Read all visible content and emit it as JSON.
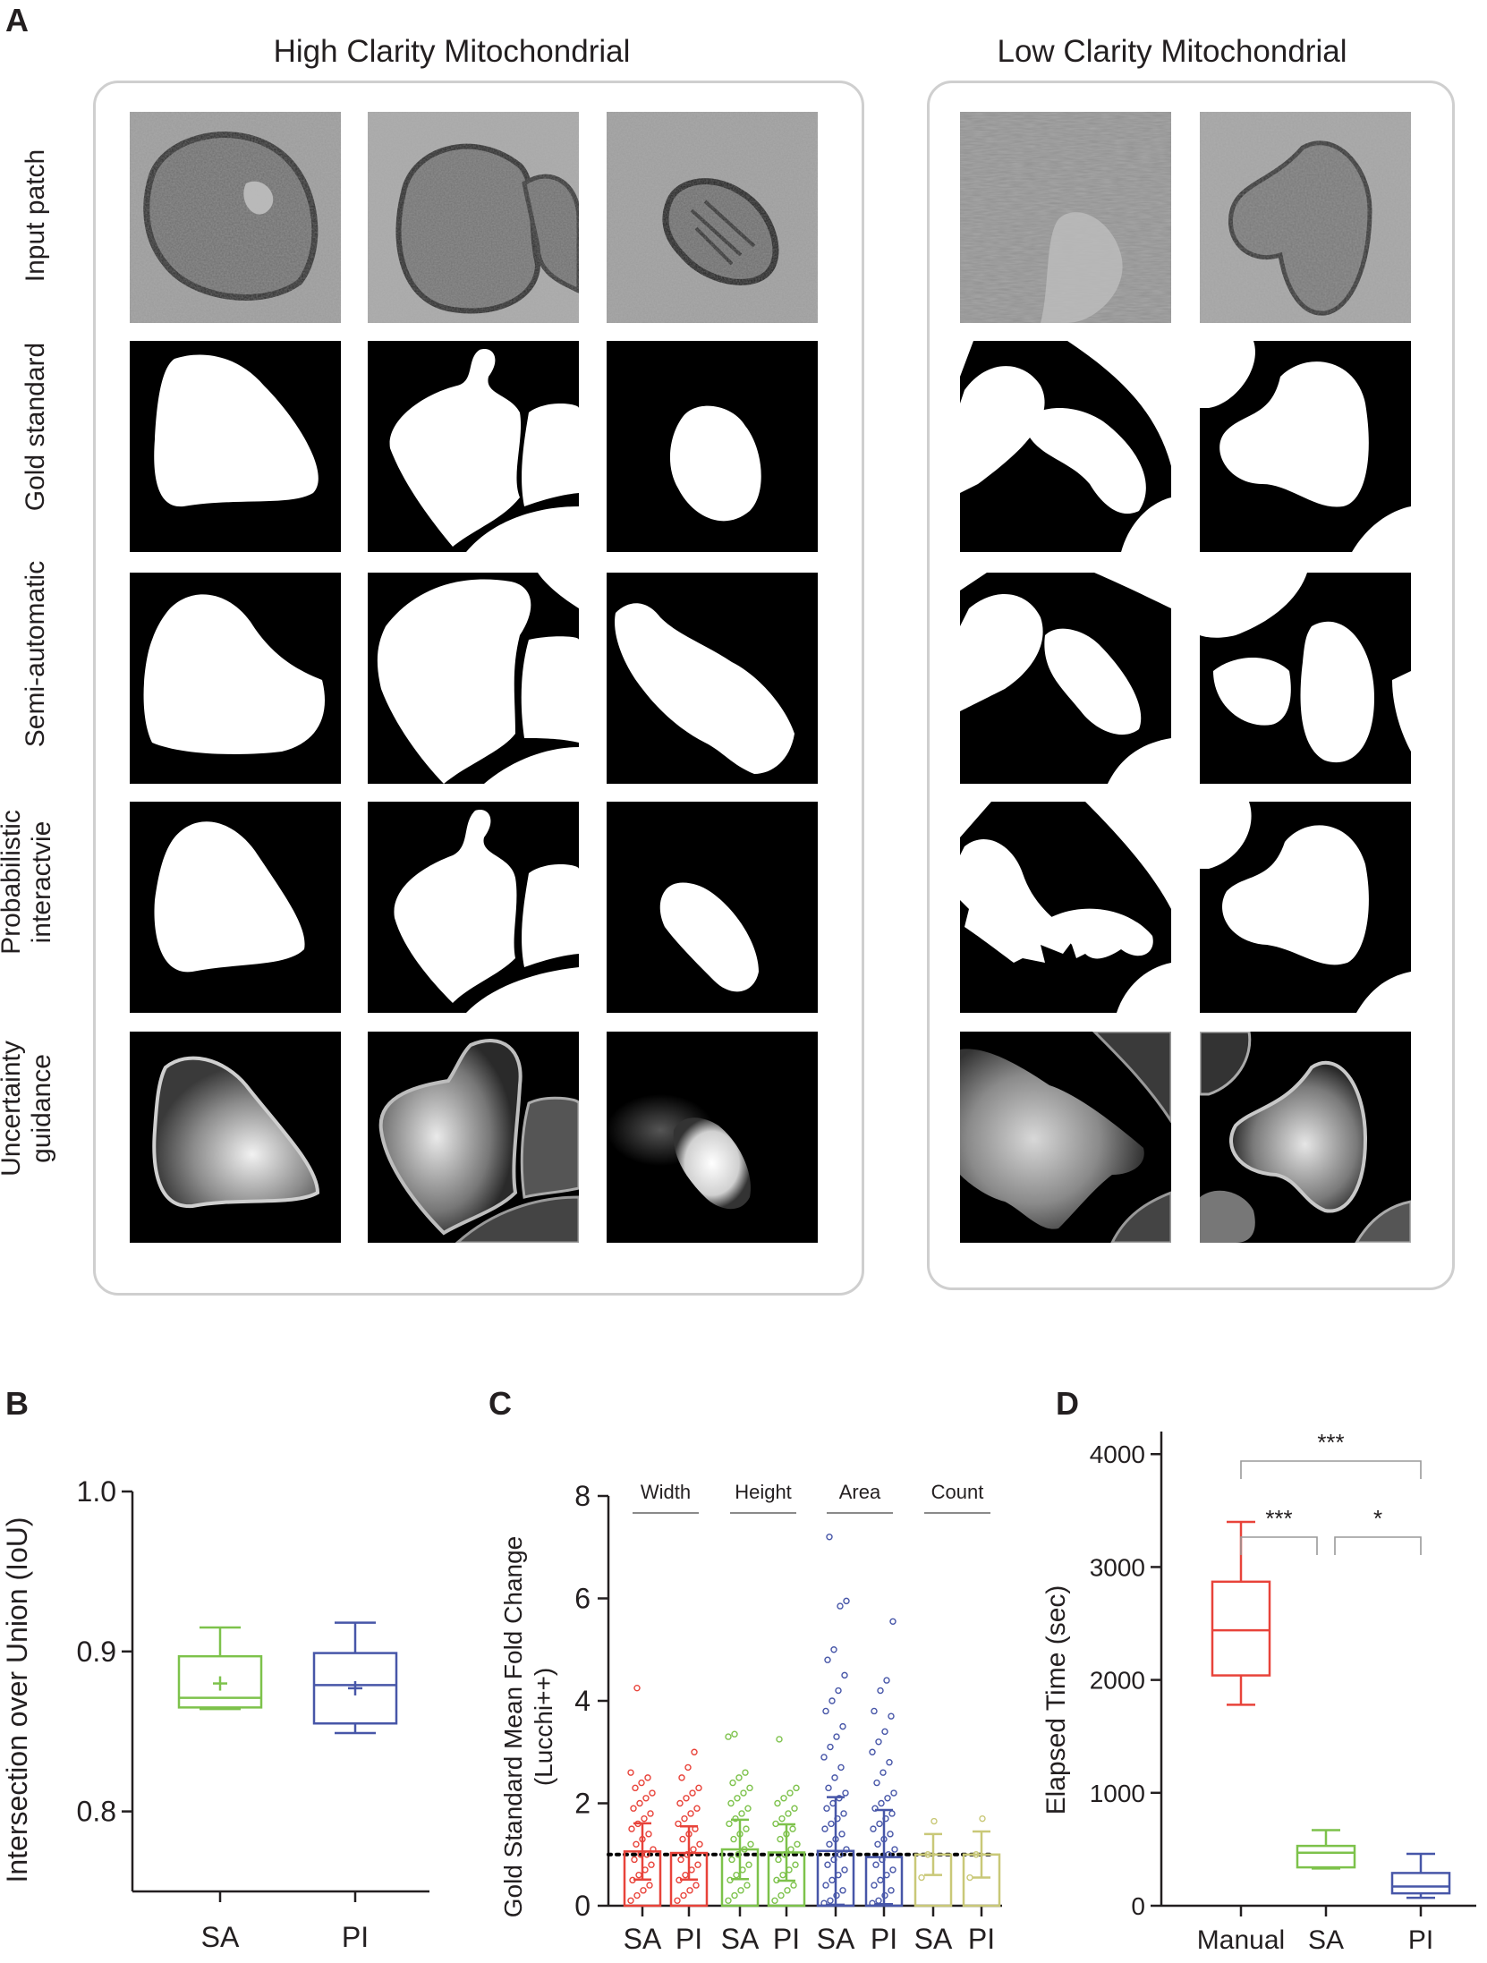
{
  "panel_a": {
    "letter": "A",
    "high_title": "High Clarity Mitochondrial",
    "low_title": "Low Clarity Mitochondrial",
    "rows": [
      {
        "label": "Input patch"
      },
      {
        "label": "Gold standard"
      },
      {
        "label": "Semi-automatic"
      },
      {
        "label": "Probabilistic\ninteractvie"
      },
      {
        "label": "Uncertainty\nguidance"
      }
    ]
  },
  "panel_b": {
    "letter": "B",
    "chart_data": {
      "type": "box",
      "ylabel": "Intersection over Union (IoU)",
      "ylim": [
        0.75,
        1.0
      ],
      "yticks": [
        "0.8",
        "0.9",
        "1.0"
      ],
      "categories": [
        "SA",
        "PI"
      ],
      "boxes": [
        {
          "name": "SA",
          "color": "#7dc24b",
          "min": 0.864,
          "q1": 0.865,
          "median": 0.871,
          "q3": 0.897,
          "max": 0.915,
          "mean": 0.88
        },
        {
          "name": "PI",
          "color": "#4756a8",
          "min": 0.849,
          "q1": 0.855,
          "median": 0.879,
          "q3": 0.899,
          "max": 0.918,
          "mean": 0.877
        }
      ]
    }
  },
  "panel_c": {
    "letter": "C",
    "chart_data": {
      "type": "bar",
      "ylabel_line1": "Gold Standard Mean Fold Change",
      "ylabel_line2": "(Lucchi++)",
      "ylim": [
        0,
        8
      ],
      "yticks": [
        "0",
        "2",
        "4",
        "6",
        "8"
      ],
      "reference_line": 1.0,
      "groups": [
        "Width",
        "Height",
        "Area",
        "Count"
      ],
      "categories": [
        "SA",
        "PI",
        "SA",
        "PI",
        "SA",
        "PI",
        "SA",
        "PI"
      ],
      "bars": [
        {
          "group": "Width",
          "method": "SA",
          "color": "#e8433a",
          "mean": 1.06,
          "sd": 0.55,
          "points": [
            0.1,
            0.2,
            0.3,
            0.4,
            0.5,
            0.6,
            0.7,
            0.8,
            0.9,
            1.0,
            1.0,
            1.1,
            1.2,
            1.3,
            1.4,
            1.5,
            1.6,
            1.7,
            1.8,
            1.9,
            2.0,
            2.1,
            2.2,
            2.3,
            2.4,
            2.5,
            2.6,
            4.25
          ]
        },
        {
          "group": "Width",
          "method": "PI",
          "color": "#e8433a",
          "mean": 1.03,
          "sd": 0.52,
          "points": [
            0.1,
            0.2,
            0.3,
            0.4,
            0.5,
            0.6,
            0.7,
            0.8,
            0.9,
            1.0,
            1.1,
            1.2,
            1.3,
            1.4,
            1.5,
            1.6,
            1.7,
            1.8,
            1.9,
            2.0,
            2.1,
            2.2,
            2.3,
            2.5,
            2.7,
            3.0
          ]
        },
        {
          "group": "Height",
          "method": "SA",
          "color": "#7dc24b",
          "mean": 1.1,
          "sd": 0.58,
          "points": [
            0.1,
            0.2,
            0.3,
            0.4,
            0.5,
            0.6,
            0.7,
            0.8,
            0.9,
            1.0,
            1.1,
            1.2,
            1.3,
            1.4,
            1.5,
            1.6,
            1.7,
            1.8,
            1.9,
            2.0,
            2.1,
            2.2,
            2.3,
            2.4,
            2.5,
            2.6,
            3.3,
            3.35
          ]
        },
        {
          "group": "Height",
          "method": "PI",
          "color": "#7dc24b",
          "mean": 1.04,
          "sd": 0.55,
          "points": [
            0.1,
            0.2,
            0.3,
            0.4,
            0.5,
            0.6,
            0.7,
            0.8,
            0.9,
            1.0,
            1.1,
            1.2,
            1.3,
            1.4,
            1.5,
            1.6,
            1.7,
            1.8,
            1.9,
            2.0,
            2.1,
            2.2,
            2.3,
            3.25
          ]
        },
        {
          "group": "Area",
          "method": "SA",
          "color": "#4756a8",
          "mean": 1.07,
          "sd": 1.05,
          "points": [
            0.05,
            0.1,
            0.2,
            0.3,
            0.4,
            0.5,
            0.6,
            0.7,
            0.8,
            0.9,
            1.0,
            1.1,
            1.2,
            1.3,
            1.4,
            1.5,
            1.6,
            1.7,
            1.8,
            1.9,
            2.0,
            2.1,
            2.2,
            2.3,
            2.5,
            2.7,
            2.9,
            3.1,
            3.3,
            3.5,
            3.8,
            4.0,
            4.2,
            4.5,
            4.8,
            5.0,
            5.85,
            5.95,
            7.2
          ]
        },
        {
          "group": "Area",
          "method": "PI",
          "color": "#4756a8",
          "mean": 0.95,
          "sd": 0.92,
          "points": [
            0.05,
            0.1,
            0.2,
            0.3,
            0.4,
            0.5,
            0.6,
            0.7,
            0.8,
            0.9,
            1.0,
            1.1,
            1.2,
            1.3,
            1.4,
            1.5,
            1.6,
            1.7,
            1.8,
            1.9,
            2.0,
            2.1,
            2.2,
            2.4,
            2.6,
            2.8,
            3.0,
            3.2,
            3.4,
            3.7,
            3.8,
            4.2,
            4.4,
            5.55
          ]
        },
        {
          "group": "Count",
          "method": "SA",
          "color": "#c9c878",
          "mean": 1.0,
          "sd": 0.4,
          "points": [
            0.55,
            1.0,
            1.65
          ]
        },
        {
          "group": "Count",
          "method": "PI",
          "color": "#c9c878",
          "mean": 1.0,
          "sd": 0.45,
          "points": [
            0.55,
            1.0,
            1.7
          ]
        }
      ]
    }
  },
  "panel_d": {
    "letter": "D",
    "chart_data": {
      "type": "box",
      "ylabel": "Elapsed Time (sec)",
      "ylim": [
        0,
        4200
      ],
      "yticks": [
        "0",
        "1000",
        "2000",
        "3000",
        "4000"
      ],
      "categories": [
        "Manual",
        "SA",
        "PI"
      ],
      "boxes": [
        {
          "name": "Manual",
          "color": "#e8433a",
          "min": 1780,
          "q1": 2040,
          "median": 2440,
          "q3": 2870,
          "max": 3400
        },
        {
          "name": "SA",
          "color": "#7dc24b",
          "min": 330,
          "q1": 340,
          "median": 470,
          "q3": 530,
          "max": 670
        },
        {
          "name": "PI",
          "color": "#4756a8",
          "min": 70,
          "q1": 110,
          "median": 170,
          "q3": 290,
          "max": 460
        }
      ],
      "significance": [
        {
          "from": "Manual",
          "to": "PI",
          "label": "***"
        },
        {
          "from": "Manual",
          "to": "SA",
          "label": "***"
        },
        {
          "from": "SA",
          "to": "PI",
          "label": "*"
        }
      ]
    }
  }
}
